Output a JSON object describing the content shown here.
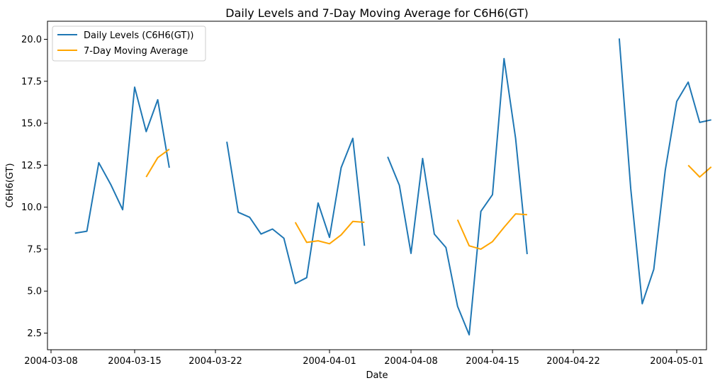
{
  "chart_data": {
    "type": "line",
    "title": "Daily Levels and 7-Day Moving Average for C6H6(GT)",
    "xlabel": "Date",
    "ylabel": "C6H6(GT)",
    "xlim": [
      "2004-03-08",
      "2004-05-02"
    ],
    "ylim": [
      1.5,
      21.0
    ],
    "x_ticks": [
      "2004-03-08",
      "2004-03-15",
      "2004-03-22",
      "2004-04-01",
      "2004-04-08",
      "2004-04-15",
      "2004-04-22",
      "2004-05-01"
    ],
    "y_ticks": [
      2.5,
      5.0,
      7.5,
      10.0,
      12.5,
      15.0,
      17.5,
      20.0
    ],
    "y_tick_labels": [
      "2.5",
      "5.0",
      "7.5",
      "10.0",
      "12.5",
      "15.0",
      "17.5",
      "20.0"
    ],
    "grid": false,
    "legend_position": "upper-left",
    "series": [
      {
        "name": "Daily Levels (C6H6(GT))",
        "color": "#1f77b4",
        "points": [
          [
            "2004-03-10",
            8.45
          ],
          [
            "2004-03-11",
            8.57
          ],
          [
            "2004-03-12",
            12.65
          ],
          [
            "2004-03-13",
            11.35
          ],
          [
            "2004-03-14",
            9.85
          ],
          [
            "2004-03-15",
            17.15
          ],
          [
            "2004-03-16",
            14.5
          ],
          [
            "2004-03-17",
            16.4
          ],
          [
            "2004-03-18",
            12.35
          ],
          [
            "2004-03-19",
            null
          ],
          [
            "2004-03-22",
            null
          ],
          [
            "2004-03-23",
            13.9
          ],
          [
            "2004-03-24",
            9.7
          ],
          [
            "2004-03-25",
            9.4
          ],
          [
            "2004-03-26",
            8.4
          ],
          [
            "2004-03-27",
            8.7
          ],
          [
            "2004-03-28",
            8.15
          ],
          [
            "2004-03-29",
            5.45
          ],
          [
            "2004-03-30",
            5.8
          ],
          [
            "2004-03-31",
            10.25
          ],
          [
            "2004-04-01",
            8.2
          ],
          [
            "2004-04-02",
            12.35
          ],
          [
            "2004-04-03",
            14.1
          ],
          [
            "2004-04-04",
            7.7
          ],
          [
            "2004-04-05",
            null
          ],
          [
            "2004-04-06",
            13.0
          ],
          [
            "2004-04-07",
            11.3
          ],
          [
            "2004-04-08",
            7.25
          ],
          [
            "2004-04-09",
            12.9
          ],
          [
            "2004-04-10",
            8.4
          ],
          [
            "2004-04-11",
            7.6
          ],
          [
            "2004-04-12",
            4.1
          ],
          [
            "2004-04-13",
            2.4
          ],
          [
            "2004-04-14",
            9.75
          ],
          [
            "2004-04-15",
            10.75
          ],
          [
            "2004-04-16",
            18.85
          ],
          [
            "2004-04-17",
            14.1
          ],
          [
            "2004-04-18",
            7.2
          ],
          [
            "2004-04-19",
            null
          ],
          [
            "2004-04-26",
            20.05
          ],
          [
            "2004-04-27",
            11.1
          ],
          [
            "2004-04-28",
            4.25
          ],
          [
            "2004-04-29",
            6.3
          ],
          [
            "2004-04-30",
            12.2
          ],
          [
            "2004-05-01",
            16.3
          ],
          [
            "2004-05-02",
            17.45
          ],
          [
            "2004-05-03",
            15.05
          ],
          [
            "2004-05-04",
            15.2
          ]
        ]
      },
      {
        "name": "7-Day Moving Average",
        "color": "#ffa500",
        "points": [
          [
            "2004-03-16",
            11.8
          ],
          [
            "2004-03-17",
            12.95
          ],
          [
            "2004-03-18",
            13.45
          ],
          [
            "2004-03-19",
            null
          ],
          [
            "2004-03-29",
            9.1
          ],
          [
            "2004-03-30",
            7.9
          ],
          [
            "2004-03-31",
            8.0
          ],
          [
            "2004-04-01",
            7.82
          ],
          [
            "2004-04-02",
            8.35
          ],
          [
            "2004-04-03",
            9.15
          ],
          [
            "2004-04-04",
            9.1
          ],
          [
            "2004-04-05",
            null
          ],
          [
            "2004-04-12",
            9.25
          ],
          [
            "2004-04-13",
            7.7
          ],
          [
            "2004-04-14",
            7.5
          ],
          [
            "2004-04-15",
            7.95
          ],
          [
            "2004-04-16",
            8.8
          ],
          [
            "2004-04-17",
            9.6
          ],
          [
            "2004-04-18",
            9.55
          ],
          [
            "2004-04-19",
            null
          ],
          [
            "2004-05-02",
            12.5
          ],
          [
            "2004-05-03",
            11.8
          ],
          [
            "2004-05-04",
            12.4
          ]
        ]
      }
    ]
  }
}
